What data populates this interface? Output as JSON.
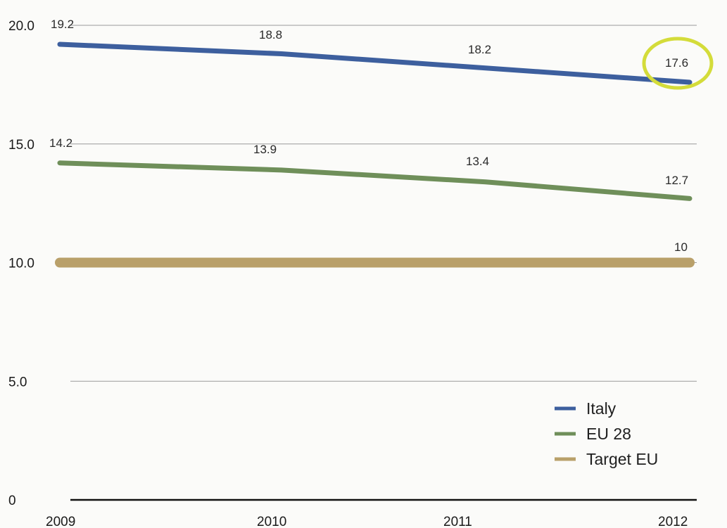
{
  "chart_data": {
    "type": "line",
    "title": "",
    "xlabel": "",
    "ylabel": "",
    "x": [
      "2009",
      "2010",
      "2011",
      "2012"
    ],
    "ylim": [
      0,
      20
    ],
    "yticks": [
      "0",
      "5.0",
      "10.0",
      "15.0",
      "20.0"
    ],
    "grid": true,
    "legend_position": "bottom-right",
    "series": [
      {
        "name": "Italy",
        "values": [
          19.2,
          18.8,
          18.2,
          17.6
        ],
        "labels": [
          "19.2",
          "18.8",
          "18.2",
          "17.6"
        ],
        "color": "#3d5f9e"
      },
      {
        "name": "EU 28",
        "values": [
          14.2,
          13.9,
          13.4,
          12.7
        ],
        "labels": [
          "14.2",
          "13.9",
          "13.4",
          "12.7"
        ],
        "color": "#6f8f5a"
      },
      {
        "name": "Target EU",
        "values": [
          10,
          10,
          10,
          10
        ],
        "labels": [
          "",
          "",
          "",
          "10"
        ],
        "color": "#b9a06a"
      }
    ],
    "highlight": {
      "series": "Italy",
      "year": "2012",
      "color": "#d4dc3a"
    }
  }
}
